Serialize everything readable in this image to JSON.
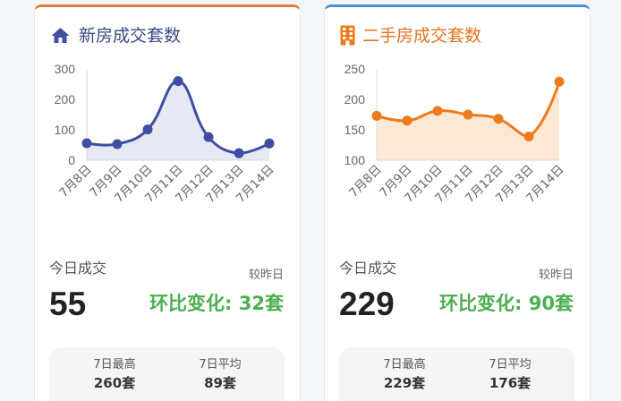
{
  "chart_data": [
    {
      "type": "line",
      "title": "新房成交套数",
      "categories": [
        "7月8日",
        "7月9日",
        "7月10日",
        "7月11日",
        "7月12日",
        "7月13日",
        "7月14日"
      ],
      "values": [
        56,
        53,
        101,
        260,
        76,
        23,
        55
      ],
      "yticks": [
        0,
        100,
        200,
        300
      ],
      "ylim": [
        0,
        300
      ],
      "smooth": true,
      "area_fill": true,
      "grid": false,
      "line_color": "#3d4ea3",
      "fill_color": "#e6e8f4"
    },
    {
      "type": "line",
      "title": "二手房成交套数",
      "categories": [
        "7月8日",
        "7月9日",
        "7月10日",
        "7月11日",
        "7月12日",
        "7月13日",
        "7月14日"
      ],
      "values": [
        173,
        165,
        181,
        175,
        168,
        139,
        229
      ],
      "yticks": [
        100,
        150,
        200,
        250
      ],
      "ylim": [
        100,
        250
      ],
      "smooth": true,
      "area_fill": true,
      "grid": false,
      "line_color": "#ee7a1e",
      "fill_color": "#fde8d6"
    }
  ],
  "cards": [
    {
      "icon": "house-icon",
      "accent_color": "#3d4ea3",
      "title_color": "#394a85",
      "top_border_color": "#e07d35",
      "today_label": "今日成交",
      "compare_label": "较昨日",
      "today_value": "55",
      "change_text": "环比变化: 32套",
      "change_color": "#4caf50",
      "stats": [
        {
          "label": "7日最高",
          "value": "260套"
        },
        {
          "label": "7日平均",
          "value": "89套"
        }
      ]
    },
    {
      "icon": "building-icon",
      "accent_color": "#ee7a1e",
      "title_color": "#e8731e",
      "top_border_color": "#4b92d6",
      "today_label": "今日成交",
      "compare_label": "较昨日",
      "today_value": "229",
      "change_text": "环比变化: 90套",
      "change_color": "#4caf50",
      "stats": [
        {
          "label": "7日最高",
          "value": "229套"
        },
        {
          "label": "7日平均",
          "value": "176套"
        }
      ]
    }
  ]
}
